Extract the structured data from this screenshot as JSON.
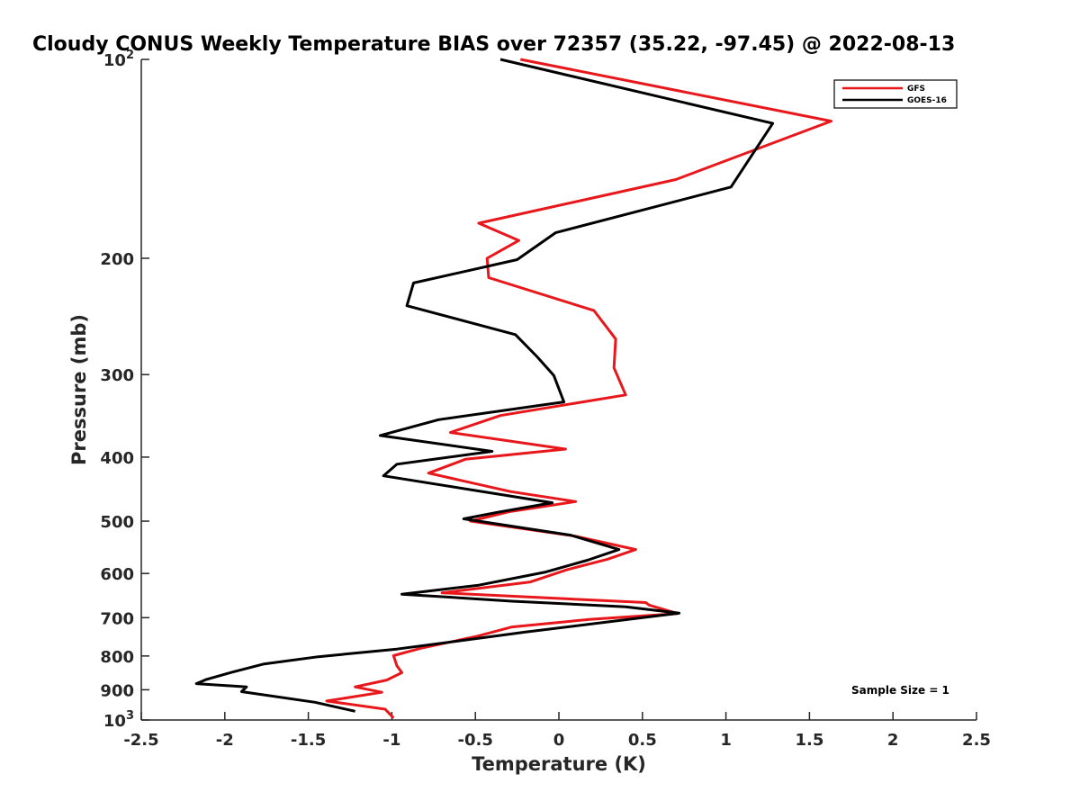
{
  "chart_data": {
    "type": "line",
    "title": "Cloudy CONUS Weekly Temperature BIAS over 72357 (35.22, -97.45) @ 2022-08-13",
    "xlabel": "Temperature (K)",
    "ylabel": "Pressure (mb)",
    "xlim": [
      -2.5,
      2.5
    ],
    "ylim": [
      100,
      1000
    ],
    "y_scale": "log",
    "y_reversed": true,
    "grid": false,
    "legend_position": "top-right",
    "x_ticks": [
      "-2.5",
      "-2",
      "-1.5",
      "-1",
      "-0.5",
      "0",
      "0.5",
      "1",
      "1.5",
      "2",
      "2.5"
    ],
    "y_ticks": [
      {
        "value": 100,
        "label": "10",
        "sup": "2"
      },
      {
        "value": 200,
        "label": "200",
        "sup": ""
      },
      {
        "value": 300,
        "label": "300",
        "sup": ""
      },
      {
        "value": 400,
        "label": "400",
        "sup": ""
      },
      {
        "value": 500,
        "label": "500",
        "sup": ""
      },
      {
        "value": 600,
        "label": "600",
        "sup": ""
      },
      {
        "value": 700,
        "label": "700",
        "sup": ""
      },
      {
        "value": 800,
        "label": "800",
        "sup": ""
      },
      {
        "value": 900,
        "label": "900",
        "sup": ""
      },
      {
        "value": 1000,
        "label": "10",
        "sup": "3"
      }
    ],
    "annotation": "Sample Size = 1",
    "series": [
      {
        "name": "GFS",
        "color": "#e8171b",
        "points": [
          [
            -0.23,
            100
          ],
          [
            1.63,
            124
          ],
          [
            0.7,
            152
          ],
          [
            -0.48,
            177
          ],
          [
            -0.24,
            188
          ],
          [
            -0.43,
            200
          ],
          [
            -0.42,
            214
          ],
          [
            0.21,
            240
          ],
          [
            0.34,
            265
          ],
          [
            0.33,
            293
          ],
          [
            0.4,
            322
          ],
          [
            -0.35,
            346
          ],
          [
            -0.65,
            367
          ],
          [
            0.04,
            389
          ],
          [
            -0.56,
            403
          ],
          [
            -0.78,
            423
          ],
          [
            -0.29,
            451
          ],
          [
            0.1,
            467
          ],
          [
            -0.3,
            484
          ],
          [
            -0.53,
            500
          ],
          [
            0.1,
            527
          ],
          [
            0.46,
            552
          ],
          [
            0.29,
            571
          ],
          [
            0.05,
            592
          ],
          [
            -0.17,
            618
          ],
          [
            -0.7,
            642
          ],
          [
            0.52,
            664
          ],
          [
            0.54,
            670
          ],
          [
            0.71,
            690
          ],
          [
            0.19,
            704
          ],
          [
            -0.28,
            723
          ],
          [
            -0.5,
            748
          ],
          [
            -0.83,
            779
          ],
          [
            -0.99,
            799
          ],
          [
            -0.97,
            828
          ],
          [
            -0.94,
            848
          ],
          [
            -1.03,
            870
          ],
          [
            -1.22,
            891
          ],
          [
            -1.06,
            908
          ],
          [
            -1.39,
            936
          ],
          [
            -1.04,
            963
          ],
          [
            -0.99,
            993
          ]
        ]
      },
      {
        "name": "GOES-16",
        "color": "#000000",
        "points": [
          [
            -0.35,
            100
          ],
          [
            1.28,
            125
          ],
          [
            1.03,
            156
          ],
          [
            -0.02,
            183
          ],
          [
            -0.25,
            201
          ],
          [
            -0.87,
            218
          ],
          [
            -0.91,
            236
          ],
          [
            -0.26,
            261
          ],
          [
            -0.13,
            282
          ],
          [
            -0.03,
            301
          ],
          [
            0.03,
            330
          ],
          [
            -0.72,
            351
          ],
          [
            -1.07,
            371
          ],
          [
            -0.4,
            392
          ],
          [
            -0.97,
            410
          ],
          [
            -1.05,
            427
          ],
          [
            -0.41,
            453
          ],
          [
            -0.04,
            469
          ],
          [
            -0.37,
            485
          ],
          [
            -0.57,
            496
          ],
          [
            0.07,
            525
          ],
          [
            0.36,
            552
          ],
          [
            0.17,
            573
          ],
          [
            -0.08,
            597
          ],
          [
            -0.48,
            625
          ],
          [
            -0.94,
            645
          ],
          [
            -0.28,
            661
          ],
          [
            0.4,
            674
          ],
          [
            0.72,
            689
          ],
          [
            -0.2,
            736
          ],
          [
            -0.97,
            781
          ],
          [
            -1.44,
            802
          ],
          [
            -1.77,
            823
          ],
          [
            -1.96,
            847
          ],
          [
            -2.11,
            868
          ],
          [
            -2.17,
            881
          ],
          [
            -1.87,
            891
          ],
          [
            -1.9,
            906
          ],
          [
            -1.46,
            940
          ],
          [
            -1.22,
            970
          ]
        ]
      }
    ]
  }
}
